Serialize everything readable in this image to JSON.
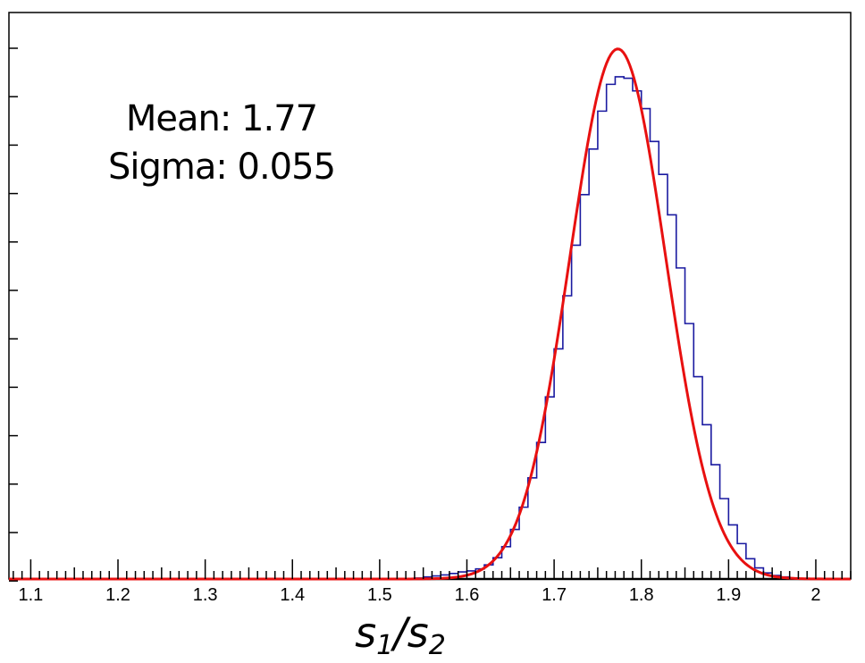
{
  "chart_data": {
    "type": "histogram",
    "xlabel": {
      "base1": "s",
      "sub1": "1",
      "slash": "/",
      "base2": "s",
      "sub2": "2"
    },
    "xlim": [
      1.075,
      2.04
    ],
    "ylim": [
      0,
      1.12
    ],
    "xticks": [
      "1.1",
      "1.2",
      "1.3",
      "1.4",
      "1.5",
      "1.6",
      "1.7",
      "1.8",
      "1.9",
      "2"
    ],
    "grid": false,
    "annotations": {
      "mean": "Mean: 1.77",
      "sigma": "Sigma: 0.055"
    },
    "colors": {
      "histogram": "#1a1aa0",
      "fit": "#e81010",
      "frame": "#000000"
    },
    "histogram": {
      "bin_width": 0.01,
      "bins_from": 1.54,
      "bins_to": 2.0,
      "counts": [
        0.002,
        0.004,
        0.006,
        0.008,
        0.011,
        0.014,
        0.016,
        0.02,
        0.028,
        0.042,
        0.064,
        0.098,
        0.142,
        0.2,
        0.27,
        0.36,
        0.455,
        0.56,
        0.66,
        0.76,
        0.85,
        0.925,
        0.978,
        0.993,
        0.99,
        0.965,
        0.93,
        0.865,
        0.8,
        0.72,
        0.615,
        0.505,
        0.4,
        0.305,
        0.226,
        0.159,
        0.107,
        0.07,
        0.04,
        0.022,
        0.012,
        0.007,
        0.004,
        0.002,
        0.001,
        0.0
      ]
    },
    "fit": {
      "type": "gaussian",
      "mean": 1.773,
      "sigma": 0.055,
      "amplitude": 1.048
    }
  }
}
